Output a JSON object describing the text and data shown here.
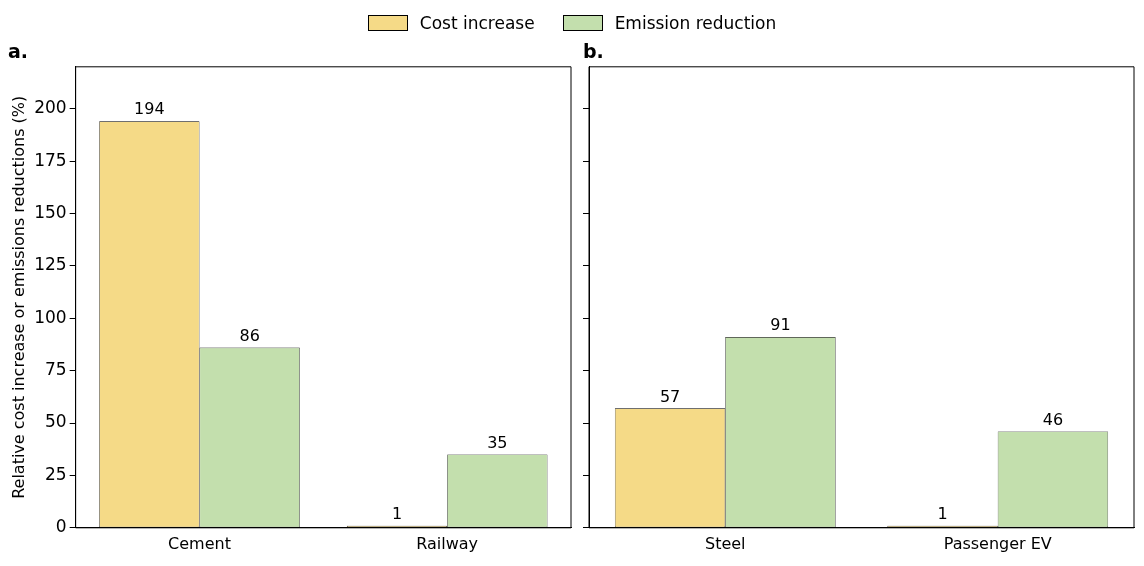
{
  "chart_data": [
    {
      "type": "bar",
      "title": "a.",
      "ylabel": "Relative cost increase or emissions reductions (%)",
      "categories": [
        "Cement",
        "Railway"
      ],
      "series": [
        {
          "name": "Cost increase",
          "color": "#f5da87",
          "values": [
            194,
            1
          ]
        },
        {
          "name": "Emission reduction",
          "color": "#c3dfad",
          "values": [
            86,
            35
          ]
        }
      ],
      "ylim": [
        0,
        220
      ],
      "yticks": [
        0,
        25,
        50,
        75,
        100,
        125,
        150,
        175,
        200
      ],
      "data_labels": true,
      "legend": "top",
      "grid": false
    },
    {
      "type": "bar",
      "title": "b.",
      "categories": [
        "Steel",
        "Passenger EV"
      ],
      "series": [
        {
          "name": "Cost increase",
          "color": "#f5da87",
          "values": [
            57,
            1
          ]
        },
        {
          "name": "Emission reduction",
          "color": "#c3dfad",
          "values": [
            91,
            46
          ]
        }
      ],
      "ylim": [
        0,
        220
      ],
      "yticks": [
        0,
        25,
        50,
        75,
        100,
        125,
        150,
        175,
        200
      ],
      "tick_labels": "x",
      "data_labels": true,
      "legend": "top",
      "grid": false
    }
  ]
}
